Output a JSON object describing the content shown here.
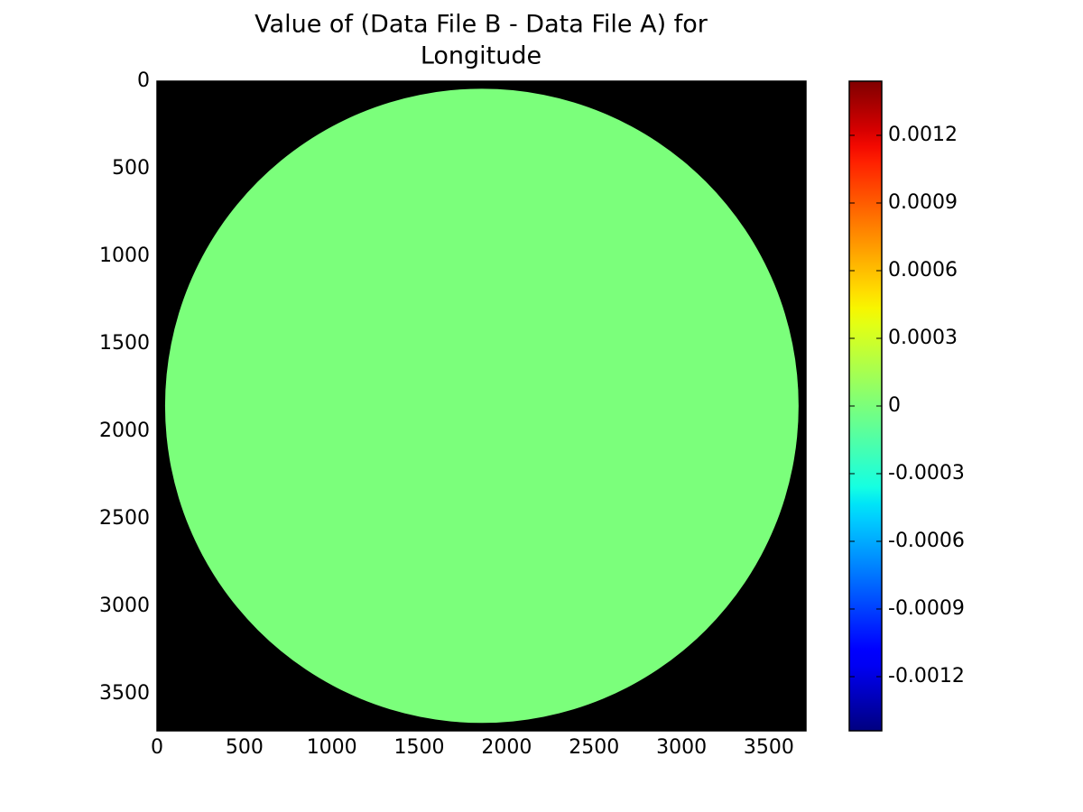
{
  "chart_data": {
    "type": "heatmap",
    "title": [
      "Value of (Data File B - Data File A) for",
      "Longitude"
    ],
    "colormap": "jet",
    "background_color": "#000000",
    "xlim": [
      0,
      3712
    ],
    "ylim": [
      3712,
      0
    ],
    "xticks": [
      0,
      500,
      1000,
      1500,
      2000,
      2500,
      3000,
      3500
    ],
    "yticks": [
      0,
      500,
      1000,
      1500,
      2000,
      2500,
      3000,
      3500
    ],
    "disk": {
      "center": [
        1858,
        1855
      ],
      "radius": 1812,
      "value": 0
    },
    "colorbar": {
      "lim": [
        -0.00144,
        0.00144
      ],
      "ticks": [
        -0.0012,
        -0.0009,
        -0.0006,
        -0.0003,
        0,
        0.0003,
        0.0006,
        0.0009,
        0.0012
      ]
    }
  }
}
